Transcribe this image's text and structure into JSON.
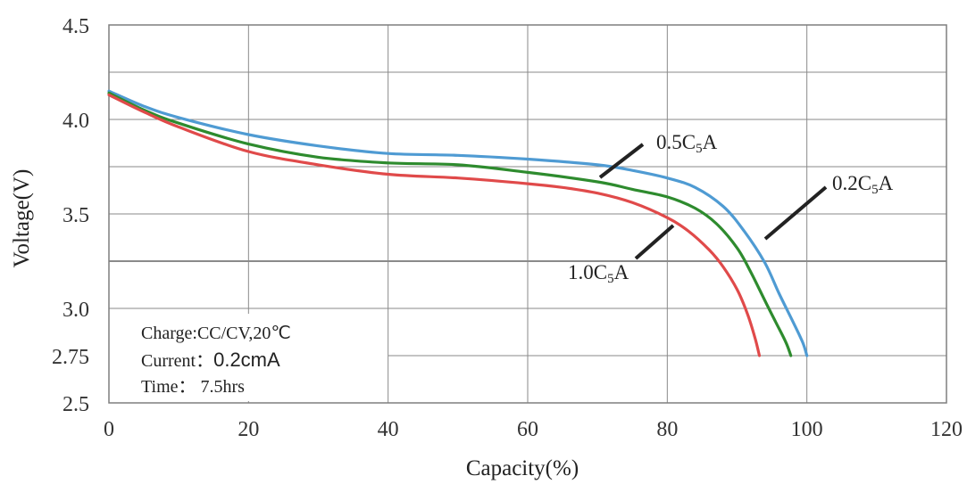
{
  "chart_data": {
    "type": "line",
    "xlabel": "Capacity(%)",
    "ylabel": "Voltage(V)",
    "xlim": [
      0,
      120
    ],
    "ylim": [
      2.5,
      4.5
    ],
    "x_ticks": [
      0,
      20,
      40,
      60,
      80,
      100,
      120
    ],
    "x_tick_labels": [
      "0",
      "20",
      "40",
      "60",
      "80",
      "100",
      "120"
    ],
    "y_ticks": [
      2.5,
      2.75,
      3.0,
      3.5,
      4.0,
      4.5
    ],
    "y_tick_labels": [
      "2.5",
      "2.75",
      "3.0",
      "3.5",
      "4.0",
      "4.5"
    ],
    "grid": true,
    "series": [
      {
        "name": "0.5C5A",
        "color": "#4f9bd3",
        "points": [
          [
            0,
            4.15
          ],
          [
            5,
            4.07
          ],
          [
            10,
            4.01
          ],
          [
            20,
            3.92
          ],
          [
            30,
            3.86
          ],
          [
            40,
            3.82
          ],
          [
            50,
            3.81
          ],
          [
            60,
            3.79
          ],
          [
            70,
            3.76
          ],
          [
            75,
            3.73
          ],
          [
            80,
            3.69
          ],
          [
            84,
            3.64
          ],
          [
            88,
            3.54
          ],
          [
            91,
            3.41
          ],
          [
            94,
            3.24
          ],
          [
            96,
            3.08
          ],
          [
            98,
            2.93
          ],
          [
            99.4,
            2.82
          ],
          [
            100,
            2.75
          ]
        ]
      },
      {
        "name": "0.2C5A",
        "color": "#2e8b2e",
        "points": [
          [
            0,
            4.14
          ],
          [
            5,
            4.05
          ],
          [
            10,
            3.98
          ],
          [
            20,
            3.87
          ],
          [
            30,
            3.8
          ],
          [
            40,
            3.77
          ],
          [
            50,
            3.76
          ],
          [
            60,
            3.72
          ],
          [
            70,
            3.67
          ],
          [
            75,
            3.63
          ],
          [
            80,
            3.59
          ],
          [
            84,
            3.53
          ],
          [
            87,
            3.45
          ],
          [
            90,
            3.32
          ],
          [
            92,
            3.19
          ],
          [
            94,
            3.04
          ],
          [
            95.5,
            2.93
          ],
          [
            97,
            2.82
          ],
          [
            97.7,
            2.75
          ]
        ]
      },
      {
        "name": "1.0C5A",
        "color": "#e04a4a",
        "points": [
          [
            0,
            4.13
          ],
          [
            5,
            4.04
          ],
          [
            10,
            3.96
          ],
          [
            20,
            3.83
          ],
          [
            30,
            3.76
          ],
          [
            40,
            3.71
          ],
          [
            50,
            3.69
          ],
          [
            60,
            3.66
          ],
          [
            65,
            3.64
          ],
          [
            70,
            3.61
          ],
          [
            75,
            3.56
          ],
          [
            80,
            3.48
          ],
          [
            83,
            3.41
          ],
          [
            86,
            3.31
          ],
          [
            88,
            3.22
          ],
          [
            90,
            3.1
          ],
          [
            91.5,
            2.97
          ],
          [
            92.6,
            2.84
          ],
          [
            93.2,
            2.75
          ]
        ]
      }
    ],
    "annotations": [
      {
        "id": "label_05",
        "base": "0.5C",
        "sub": "5",
        "tail": "A"
      },
      {
        "id": "label_02",
        "base": "0.2C",
        "sub": "5",
        "tail": "A"
      },
      {
        "id": "label_10",
        "base": "1.0C",
        "sub": "5",
        "tail": "A"
      }
    ],
    "notes": {
      "charge": "Charge:CC/CV,20℃",
      "current_label": "Current：",
      "current_value": "0.2cmA",
      "time": "Time： 7.5hrs"
    }
  }
}
